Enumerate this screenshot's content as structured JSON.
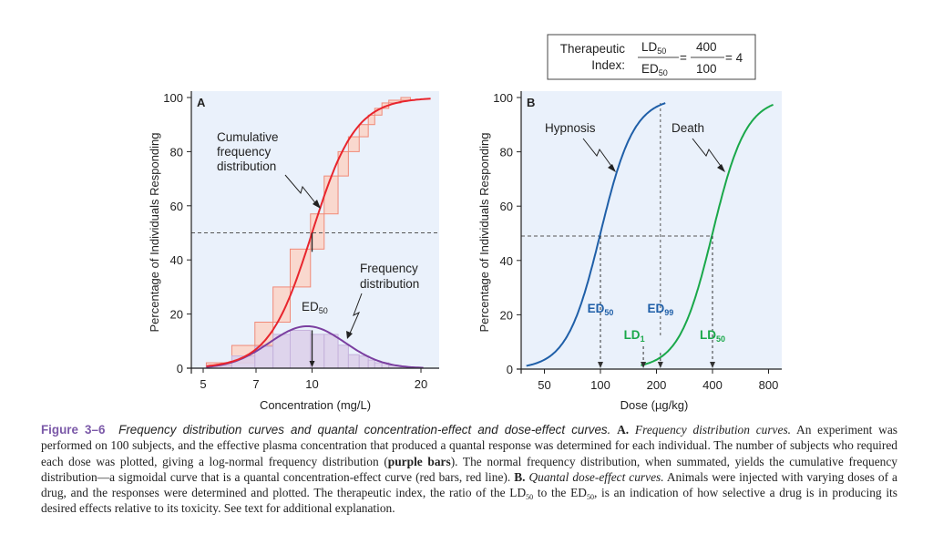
{
  "therapeutic_index": {
    "label_line1": "Therapeutic",
    "label_line2": "Index:",
    "num1": "LD",
    "num1_sub": "50",
    "den1": "ED",
    "den1_sub": "50",
    "eq": "=",
    "num2": "400",
    "den2": "100",
    "result": "= 4"
  },
  "chart_data": [
    {
      "panel": "A",
      "type": "bar",
      "xlabel": "Concentration (mg/L)",
      "ylabel": "Percentage of Individuals Responding",
      "xscale": "log",
      "xlim": [
        4.6,
        23
      ],
      "ylim": [
        0,
        100
      ],
      "xticks": [
        5,
        7,
        10,
        20
      ],
      "yticks": [
        0,
        20,
        40,
        60,
        80,
        100
      ],
      "bin_edges": [
        5.1,
        6.0,
        6.95,
        7.8,
        8.7,
        9.9,
        10.8,
        11.8,
        12.6,
        13.5,
        14.3,
        14.9,
        15.6,
        16.3,
        17.6,
        18.7
      ],
      "frequency_bars": [
        1,
        4.5,
        8,
        12.5,
        14,
        12.5,
        12.5,
        8.5,
        5,
        4.5,
        3,
        2,
        2,
        1,
        0.5
      ],
      "cumulative_bars": [
        2,
        8.4,
        17,
        30,
        44,
        57,
        71,
        80,
        85.5,
        90,
        93.5,
        96,
        98,
        99,
        100
      ],
      "cumulative_curve": {
        "ed50": 10,
        "log_slope": 0.06,
        "color": "#e8252d"
      },
      "frequency_curve": {
        "peak": 15.5,
        "peak_x": 9.7,
        "log_sigma": 0.105,
        "color": "#7b3fa0"
      },
      "reference_line_y": 50,
      "labels": {
        "panel": "A",
        "cumulative": [
          "Cumulative",
          "frequency",
          "distribution"
        ],
        "frequency": [
          "Frequency",
          "distribution"
        ],
        "ed50": "ED",
        "ed50_sub": "50"
      }
    },
    {
      "panel": "B",
      "type": "line",
      "xlabel": "Dose (µg/kg)",
      "ylabel": "Percentage of Individuals Responding",
      "xscale": "log",
      "xlim": [
        34,
        1000
      ],
      "ylim": [
        0,
        100
      ],
      "xticks": [
        50,
        100,
        200,
        400,
        800
      ],
      "yticks": [
        0,
        20,
        40,
        60,
        80,
        100
      ],
      "series": [
        {
          "name": "Hypnosis",
          "ed50": 100,
          "log2_slope": 0.3,
          "range": [
            40,
            225
          ],
          "color": "#1f5fa8"
        },
        {
          "name": "Death",
          "ed50": 400,
          "log2_slope": 0.3,
          "range": [
            165,
            850
          ],
          "color": "#1aa84a"
        }
      ],
      "reference_line_y": 49,
      "markers": [
        {
          "label": "ED",
          "sub": "50",
          "x": 100,
          "color": "#1f5fa8"
        },
        {
          "label": "ED",
          "sub": "99",
          "x": 210,
          "color": "#1f5fa8"
        },
        {
          "label": "LD",
          "sub": "1",
          "x": 170,
          "color": "#1aa84a"
        },
        {
          "label": "LD",
          "sub": "50",
          "x": 400,
          "color": "#1aa84a"
        }
      ],
      "labels": {
        "panel": "B",
        "hypnosis": "Hypnosis",
        "death": "Death"
      }
    }
  ],
  "caption": {
    "figure_label": "Figure 3–6",
    "title": "Frequency distribution curves and quantal concentration-effect and dose-effect curves.",
    "a_label": "A.",
    "a_title": "Frequency distribution curves.",
    "a_text1": "An experiment was performed on 100 subjects, and the effective plasma concentration that produced a quantal response was determined for each individual. The number of subjects who required each dose was plotted, giving a log-normal frequency distribution (",
    "a_bold": "purple bars",
    "a_text2": "). The normal frequency distribution, when summated, yields the cumulative frequency distribution—a sigmoidal curve that is a quantal concentration-effect curve (red bars, red line).",
    "b_label": "B.",
    "b_title": "Quantal dose-effect curves.",
    "b_text1": "Animals were injected with varying doses of a drug, and the responses were determined and plotted. The therapeutic index, the ratio of the LD",
    "b_sub1": "50",
    "b_text2": " to the ED",
    "b_sub2": "50",
    "b_text3": ", is an indication of how selective a drug is in producing its desired effects relative to its toxicity. See text for additional explanation."
  }
}
